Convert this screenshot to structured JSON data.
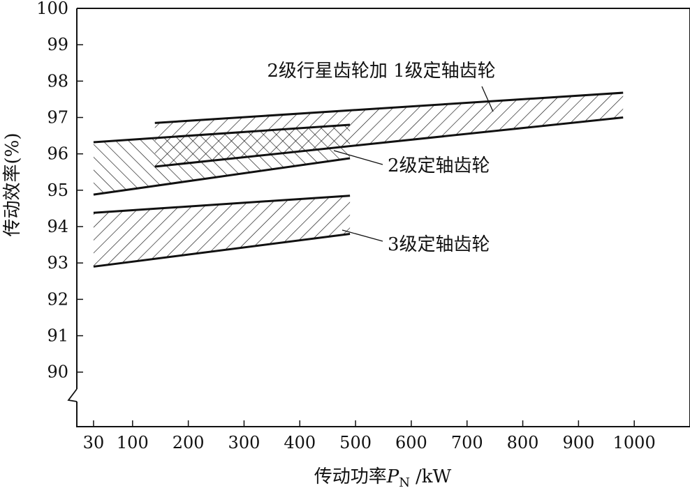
{
  "chart_data": {
    "type": "area",
    "x_unit_label": "/kW",
    "xlabel_main": "传动功率",
    "xlabel_symbol": "P",
    "xlabel_subscript": "N",
    "ylabel": "传动效率(%)",
    "xlim": [
      0,
      1100
    ],
    "ylim": [
      88.5,
      100
    ],
    "y_axis_break": true,
    "grid": false,
    "x_ticks": [
      30,
      100,
      200,
      300,
      400,
      500,
      600,
      700,
      800,
      900,
      1000
    ],
    "y_ticks": [
      90,
      91,
      92,
      93,
      94,
      95,
      96,
      97,
      98,
      99,
      100
    ],
    "series": [
      {
        "name": "2级行星齿轮加 1级定轴齿轮",
        "hatch": "forward",
        "x_range": [
          140,
          980
        ],
        "upper": [
          96.85,
          97.68
        ],
        "lower": [
          95.65,
          97.0
        ]
      },
      {
        "name": "2级定轴齿轮",
        "hatch": "backward",
        "x_range": [
          30,
          490
        ],
        "upper": [
          96.32,
          96.8
        ],
        "lower": [
          94.88,
          95.88
        ]
      },
      {
        "name": "3级定轴齿轮",
        "hatch": "forward",
        "x_range": [
          30,
          490
        ],
        "upper": [
          94.38,
          94.85
        ],
        "lower": [
          92.9,
          93.8
        ]
      }
    ]
  }
}
